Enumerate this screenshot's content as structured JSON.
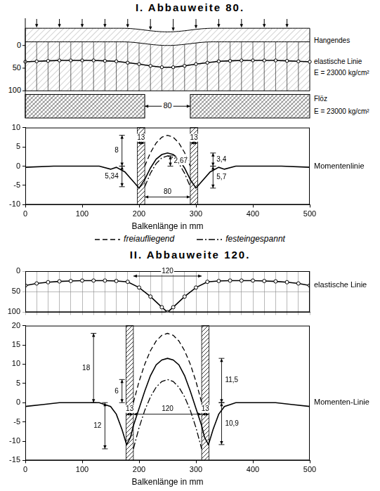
{
  "chart_data": [
    {
      "type": "diagram",
      "title": "I. Abbauweite 80.",
      "xlim": [
        0,
        500
      ],
      "ylim": [
        160,
        -60
      ],
      "yticks": [
        0,
        50,
        100
      ],
      "layers": [
        {
          "name": "Hangendes",
          "from": -38,
          "to": 100,
          "modulus": "E = 23000 kg/cm²"
        },
        {
          "name": "Flöz",
          "from": 108,
          "to": 160,
          "modulus": "E = 23000 kg/cm²"
        }
      ],
      "opening": {
        "label": "80",
        "from": 210,
        "to": 290
      },
      "series": [
        {
          "name": "elastische Linie",
          "color": "#000000",
          "marker": "circle",
          "line_style": "solid",
          "x": [
            0,
            20,
            40,
            60,
            80,
            100,
            120,
            140,
            160,
            180,
            200,
            220,
            240,
            260,
            280,
            300,
            320,
            340,
            360,
            380,
            400,
            420,
            440,
            460,
            480,
            500
          ],
          "values": [
            36,
            35,
            34,
            33,
            33,
            33,
            33,
            34,
            35,
            38,
            41,
            45,
            48,
            48,
            45,
            41,
            38,
            35,
            34,
            33,
            33,
            33,
            33,
            34,
            35,
            36
          ]
        }
      ]
    },
    {
      "type": "line",
      "xlim": [
        0,
        500
      ],
      "xticks": [
        0,
        100,
        200,
        300,
        400,
        500
      ],
      "ylim": [
        -10,
        10
      ],
      "yticks": [
        -10,
        -5,
        0,
        5,
        10
      ],
      "grid": false,
      "x_label": "Balkenlänge in mm",
      "legend": "bottom",
      "series": [
        {
          "name": "freiaufliegend",
          "color": "#000000",
          "line_style": "dashed",
          "x": [
            210,
            220,
            230,
            240,
            250,
            260,
            270,
            280,
            290
          ],
          "values": [
            0,
            3.5,
            6,
            7.5,
            8,
            7.5,
            6,
            3.5,
            0
          ]
        },
        {
          "name": "festeingespannt",
          "color": "#000000",
          "line_style": "dashdot",
          "x": [
            210,
            220,
            230,
            240,
            250,
            260,
            270,
            280,
            290
          ],
          "values": [
            -5.34,
            -1.84,
            0.66,
            2.16,
            2.67,
            2.16,
            0.66,
            -1.84,
            -5.34
          ]
        },
        {
          "color": "#000000",
          "line_style": "solid",
          "x": [
            0,
            50,
            100,
            130,
            150,
            160,
            175,
            190,
            200,
            210,
            220,
            230,
            240,
            250,
            260,
            270,
            280,
            290,
            300,
            310,
            325,
            340,
            350,
            370,
            400,
            450,
            500
          ],
          "values": [
            -0.3,
            0,
            0,
            0,
            -0.8,
            -0.3,
            -1.5,
            -4.0,
            -5.7,
            -3.5,
            -0.5,
            1.8,
            3.0,
            3.4,
            3.0,
            1.8,
            -0.5,
            -3.5,
            -5.7,
            -4.0,
            -1.5,
            -0.3,
            -0.8,
            0,
            0,
            0,
            -0.3
          ]
        }
      ],
      "line_labels": [
        {
          "text": "Momentenlinie",
          "y": 0
        }
      ],
      "bands": [
        {
          "from": 197,
          "to": 210
        },
        {
          "from": 290,
          "to": 303
        }
      ],
      "dimensions": [
        {
          "label": "8",
          "x": 170,
          "from": 0,
          "to": 8
        },
        {
          "label": "5,34",
          "x": 170,
          "from": -5.34,
          "to": 0
        },
        {
          "label": "2,67",
          "x": 255,
          "from": 0,
          "to": 2.67
        },
        {
          "label": "3,4",
          "x": 330,
          "from": 0,
          "to": 3.4
        },
        {
          "label": "5,7",
          "x": 330,
          "from": -5.7,
          "to": 0
        },
        {
          "label": "13",
          "y": 6,
          "from": 197,
          "to": 210
        },
        {
          "label": "13",
          "y": 6,
          "from": 290,
          "to": 303
        },
        {
          "label": "80",
          "y": -8,
          "from": 210,
          "to": 290
        }
      ]
    },
    {
      "type": "line",
      "title": "II. Abbauweite 120.",
      "xlim": [
        0,
        500
      ],
      "xticks": [
        0,
        20,
        40,
        60,
        80,
        100,
        120,
        140,
        160,
        180,
        200,
        220,
        240,
        260,
        280,
        300,
        320,
        340,
        360,
        380,
        400,
        420,
        440,
        460,
        480,
        500
      ],
      "ylim": [
        100,
        0
      ],
      "yticks": [
        0,
        50,
        100
      ],
      "grid": true,
      "tick_labels": "y",
      "series": [
        {
          "name": "elastische Linie",
          "color": "#000000",
          "marker": "circle",
          "line_style": "solid",
          "x": [
            0,
            20,
            40,
            60,
            80,
            100,
            120,
            140,
            160,
            180,
            200,
            220,
            240,
            250,
            260,
            280,
            300,
            320,
            340,
            360,
            380,
            400,
            420,
            440,
            460,
            480,
            500
          ],
          "values": [
            35,
            30,
            27,
            25,
            24,
            23,
            23,
            23,
            24,
            26,
            40,
            62,
            88,
            100,
            88,
            62,
            40,
            26,
            24,
            23,
            23,
            23,
            24,
            25,
            27,
            30,
            35
          ]
        }
      ],
      "dimensions": [
        {
          "label": "120",
          "y": 12,
          "from": 190,
          "to": 310
        }
      ]
    },
    {
      "type": "line",
      "xlim": [
        0,
        500
      ],
      "xticks": [
        0,
        100,
        200,
        300,
        400,
        500
      ],
      "ylim": [
        -15,
        20
      ],
      "yticks": [
        -15,
        -10,
        -5,
        0,
        5,
        10,
        15,
        20
      ],
      "grid": false,
      "x_label": "Balkenlänge in mm",
      "series": [
        {
          "color": "#000000",
          "line_style": "dashed",
          "x": [
            190,
            200,
            210,
            220,
            230,
            240,
            250,
            260,
            270,
            280,
            290,
            300,
            310
          ],
          "values": [
            0,
            5.5,
            10,
            13.5,
            16,
            17.5,
            18,
            17.5,
            16,
            13.5,
            10,
            5.5,
            0
          ]
        },
        {
          "color": "#000000",
          "line_style": "dashdot",
          "x": [
            190,
            200,
            210,
            220,
            230,
            240,
            250,
            260,
            270,
            280,
            290,
            300,
            310
          ],
          "values": [
            -12,
            -6.5,
            -2,
            1.5,
            4,
            5.5,
            6,
            5.5,
            4,
            1.5,
            -2,
            -6.5,
            -12
          ]
        },
        {
          "color": "#000000",
          "line_style": "solid",
          "x": [
            0,
            30,
            60,
            100,
            130,
            150,
            160,
            170,
            178,
            185,
            190,
            200,
            210,
            220,
            230,
            240,
            250,
            260,
            270,
            280,
            290,
            300,
            310,
            315,
            322,
            330,
            340,
            350,
            370,
            400,
            440,
            470,
            500
          ],
          "values": [
            -1,
            -0.5,
            0,
            0,
            0,
            -1,
            -3,
            -7,
            -10.9,
            -9,
            -6,
            -1.5,
            3,
            7,
            9.8,
            11.1,
            11.5,
            11.1,
            9.8,
            7,
            3,
            -1.5,
            -6,
            -9,
            -10.9,
            -7,
            -3,
            -1,
            0,
            0,
            0,
            -0.5,
            -1
          ]
        }
      ],
      "line_labels": [
        {
          "text": "Momenten-Linie",
          "y": 0
        }
      ],
      "bands": [
        {
          "from": 177,
          "to": 190
        },
        {
          "from": 310,
          "to": 323
        }
      ],
      "dimensions": [
        {
          "label": "18",
          "x": 120,
          "from": 0,
          "to": 18
        },
        {
          "label": "6",
          "x": 170,
          "from": 0,
          "to": 6
        },
        {
          "label": "12",
          "x": 140,
          "from": -12,
          "to": 0
        },
        {
          "label": "11,5",
          "x": 345,
          "from": 0,
          "to": 11.5
        },
        {
          "label": "10,9",
          "x": 345,
          "from": -10.9,
          "to": 0
        },
        {
          "label": "13",
          "y": -3,
          "from": 177,
          "to": 190
        },
        {
          "label": "13",
          "y": -3,
          "from": 310,
          "to": 323
        },
        {
          "label": "120",
          "y": -3,
          "from": 190,
          "to": 310
        }
      ]
    }
  ]
}
